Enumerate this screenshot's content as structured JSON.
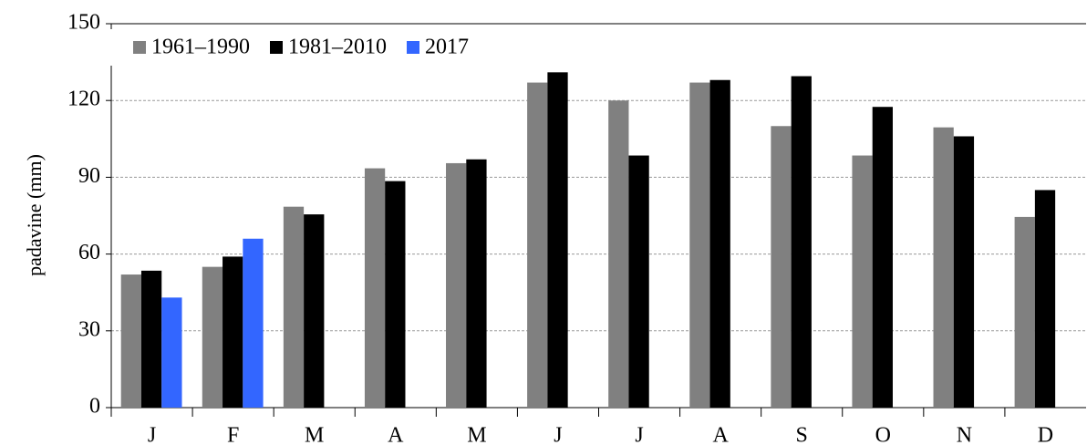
{
  "chart_data": {
    "type": "bar",
    "y_label": "padavine (mm)",
    "categories": [
      "J",
      "F",
      "M",
      "A",
      "M",
      "J",
      "J",
      "A",
      "S",
      "O",
      "N",
      "D"
    ],
    "series": [
      {
        "name": "1961–1990",
        "color": "#808080",
        "values": [
          52,
          55,
          78.5,
          93.5,
          95.5,
          127,
          120,
          127,
          110,
          98.5,
          109.5,
          74.5
        ]
      },
      {
        "name": "1981–2010",
        "color": "#000000",
        "values": [
          53.5,
          59,
          75.5,
          88.5,
          97,
          131,
          98.5,
          128,
          129.5,
          117.5,
          106,
          85
        ]
      },
      {
        "name": "2017",
        "color": "#3366ff",
        "values": [
          43,
          66,
          null,
          null,
          null,
          null,
          null,
          null,
          null,
          null,
          null,
          null
        ]
      }
    ],
    "ylim": [
      0,
      150
    ],
    "yticks": [
      0,
      30,
      60,
      90,
      120,
      150
    ],
    "grid": true,
    "legend": "top-left"
  }
}
